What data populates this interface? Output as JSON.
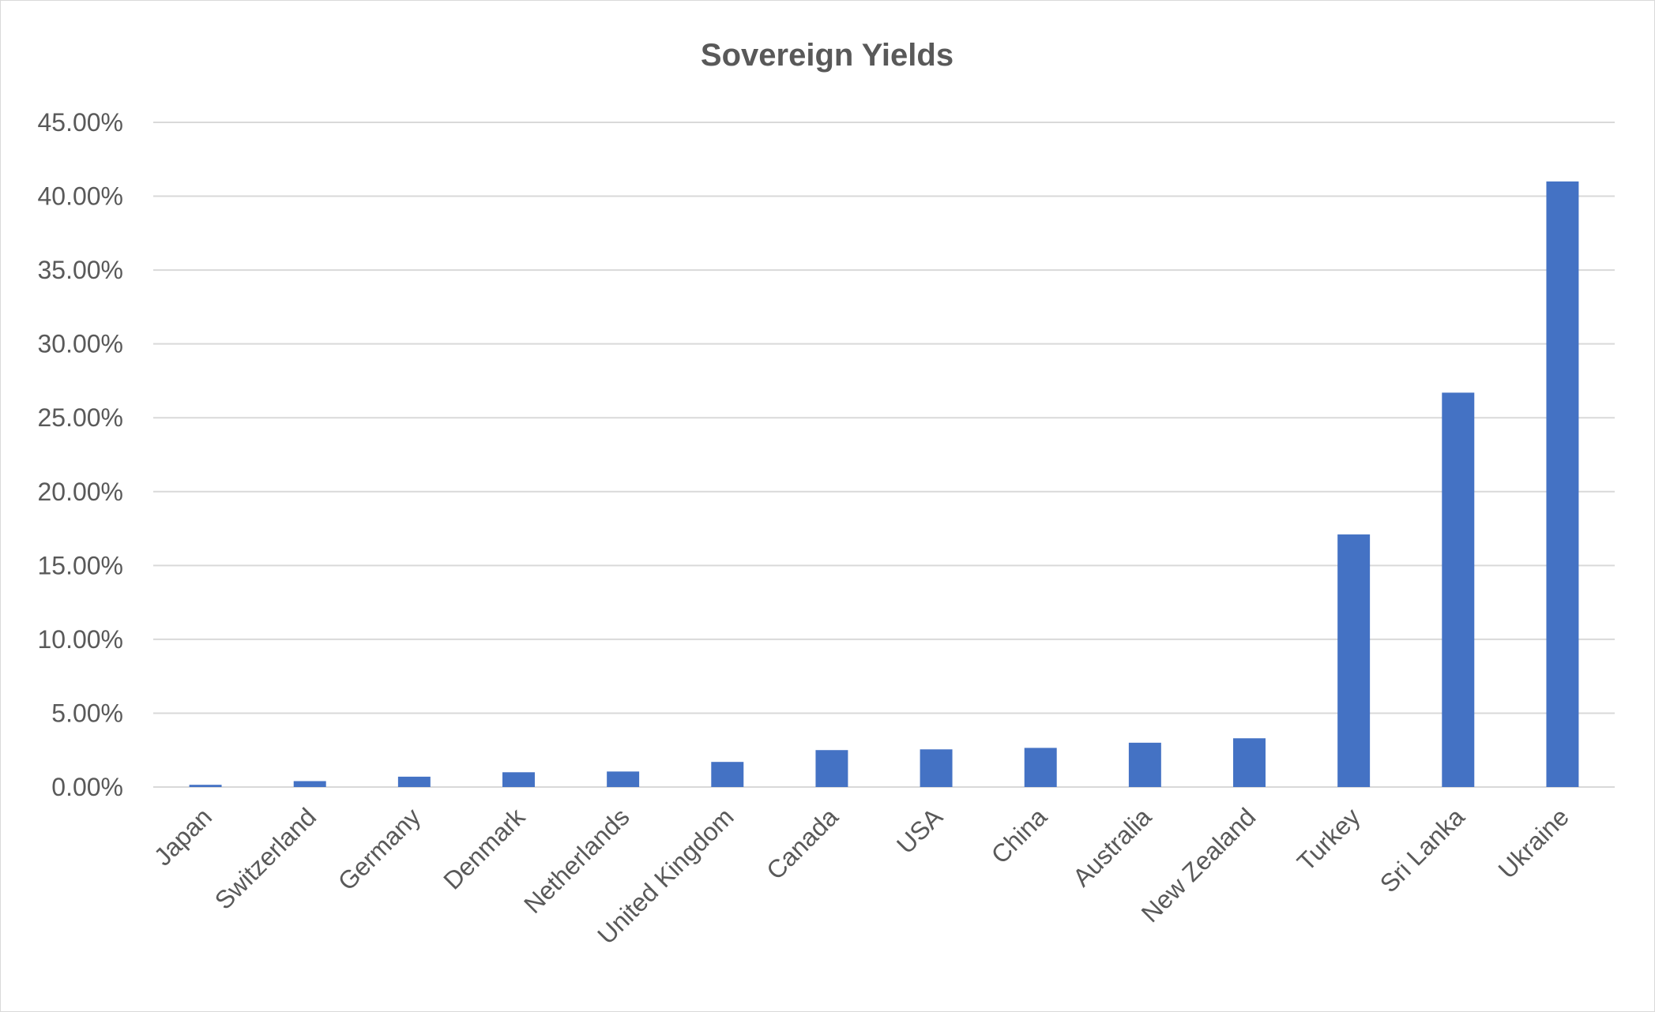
{
  "chart_data": {
    "type": "bar",
    "title": "Sovereign Yields",
    "xlabel": "",
    "ylabel": "",
    "categories": [
      "Japan",
      "Switzerland",
      "Germany",
      "Denmark",
      "Netherlands",
      "United Kingdom",
      "Canada",
      "USA",
      "China",
      "Australia",
      "New Zealand",
      "Turkey",
      "Sri Lanka",
      "Ukraine"
    ],
    "values": [
      0.15,
      0.4,
      0.7,
      1.0,
      1.05,
      1.7,
      2.5,
      2.55,
      2.65,
      3.0,
      3.3,
      17.1,
      26.7,
      41.0
    ],
    "ylim": [
      0,
      45
    ],
    "yticks": [
      0,
      5,
      10,
      15,
      20,
      25,
      30,
      35,
      40,
      45
    ],
    "ytick_labels": [
      "0.00%",
      "5.00%",
      "10.00%",
      "15.00%",
      "20.00%",
      "25.00%",
      "30.00%",
      "35.00%",
      "40.00%",
      "45.00%"
    ],
    "grid": true,
    "legend": "none",
    "bar_color": "#4472C4"
  }
}
